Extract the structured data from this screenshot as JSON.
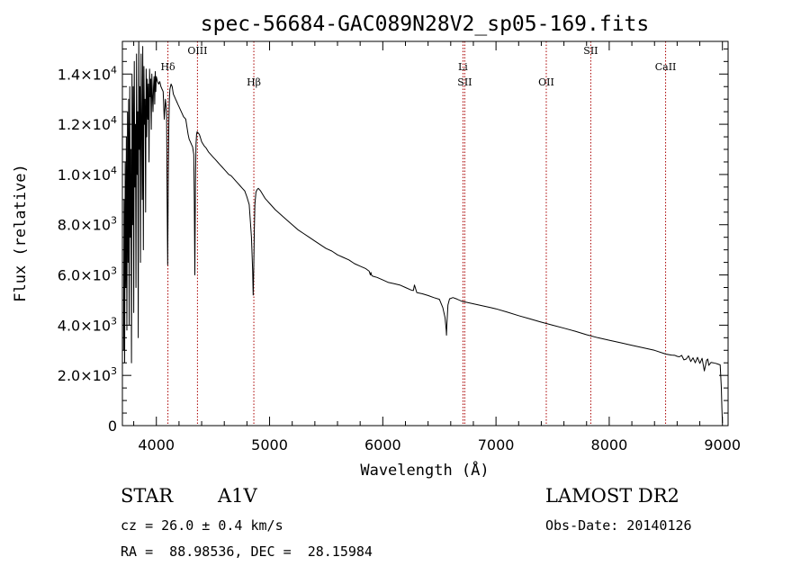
{
  "chart_data": {
    "type": "line",
    "title": "spec-56684-GAC089N28V2_sp05-169.fits",
    "xlabel": "Wavelength (Å)",
    "ylabel": "Flux (relative)",
    "xlim": [
      3700,
      9050
    ],
    "ylim": [
      0,
      15300
    ],
    "xticks": [
      4000,
      5000,
      6000,
      7000,
      8000,
      9000
    ],
    "xtick_labels": [
      "4000",
      "5000",
      "6000",
      "7000",
      "8000",
      "9000"
    ],
    "yticks": [
      {
        "value": 0,
        "mant": "0",
        "exp": ""
      },
      {
        "value": 2000,
        "mant": "2.0×10",
        "exp": "3"
      },
      {
        "value": 4000,
        "mant": "4.0×10",
        "exp": "3"
      },
      {
        "value": 6000,
        "mant": "6.0×10",
        "exp": "3"
      },
      {
        "value": 8000,
        "mant": "8.0×10",
        "exp": "3"
      },
      {
        "value": 10000,
        "mant": "1.0×10",
        "exp": "4"
      },
      {
        "value": 12000,
        "mant": "1.2×10",
        "exp": "4"
      },
      {
        "value": 14000,
        "mant": "1.4×10",
        "exp": "4"
      }
    ],
    "line_color": "#000000",
    "marker_color": "#aa0000",
    "grid": false,
    "series": [
      {
        "x": [
          3710,
          3715,
          3720,
          3725,
          3730,
          3735,
          3740,
          3745,
          3750,
          3755,
          3760,
          3765,
          3770,
          3775,
          3780,
          3785,
          3790,
          3795,
          3800,
          3805,
          3810,
          3815,
          3820,
          3825,
          3830,
          3835,
          3840,
          3845,
          3850,
          3855,
          3860,
          3865,
          3870,
          3875,
          3880,
          3885,
          3890,
          3895,
          3900,
          3905,
          3910,
          3915,
          3920,
          3925,
          3930,
          3935,
          3940,
          3945,
          3950,
          3955,
          3960,
          3965,
          3970,
          3975,
          3980,
          3985,
          3990,
          3995,
          4000,
          4010,
          4020,
          4030,
          4040,
          4050,
          4060,
          4070,
          4080,
          4090,
          4095,
          4100,
          4105,
          4110,
          4115,
          4120,
          4130,
          4140,
          4150,
          4160,
          4170,
          4180,
          4190,
          4200,
          4210,
          4220,
          4230,
          4240,
          4250,
          4260,
          4270,
          4280,
          4290,
          4300,
          4310,
          4320,
          4330,
          4335,
          4340,
          4345,
          4350,
          4355,
          4360,
          4370,
          4380,
          4390,
          4400,
          4420,
          4440,
          4460,
          4480,
          4500,
          4520,
          4540,
          4560,
          4580,
          4600,
          4620,
          4640,
          4660,
          4680,
          4700,
          4720,
          4740,
          4760,
          4780,
          4800,
          4820,
          4840,
          4850,
          4855,
          4860,
          4865,
          4870,
          4880,
          4890,
          4900,
          4920,
          4940,
          4960,
          4980,
          5000,
          5050,
          5100,
          5150,
          5200,
          5250,
          5300,
          5350,
          5400,
          5450,
          5500,
          5550,
          5600,
          5650,
          5700,
          5750,
          5800,
          5850,
          5880,
          5890,
          5895,
          5900,
          5910,
          5950,
          6000,
          6050,
          6100,
          6150,
          6200,
          6250,
          6270,
          6280,
          6290,
          6300,
          6350,
          6400,
          6450,
          6500,
          6530,
          6550,
          6560,
          6563,
          6566,
          6575,
          6590,
          6620,
          6650,
          6700,
          6750,
          6800,
          6850,
          6900,
          6950,
          7000,
          7100,
          7200,
          7300,
          7400,
          7500,
          7600,
          7700,
          7800,
          7900,
          8000,
          8100,
          8200,
          8300,
          8400,
          8500,
          8550,
          8580,
          8600,
          8620,
          8640,
          8660,
          8680,
          8700,
          8720,
          8740,
          8760,
          8780,
          8800,
          8820,
          8840,
          8860,
          8870,
          8880,
          8900,
          8920,
          8940,
          8960,
          8980,
          8990,
          8995,
          9000
        ],
        "y": [
          3000,
          9000,
          2500,
          10500,
          5500,
          11500,
          3800,
          12500,
          6500,
          13000,
          4000,
          13500,
          7500,
          11000,
          2500,
          14000,
          8000,
          13500,
          4500,
          14500,
          9500,
          12000,
          5500,
          14800,
          10000,
          12500,
          3500,
          15300,
          11000,
          13500,
          6500,
          14800,
          12000,
          9000,
          15100,
          7000,
          14300,
          12000,
          13000,
          8500,
          14200,
          11500,
          13800,
          12200,
          13600,
          10500,
          14200,
          13100,
          13800,
          11800,
          14000,
          13200,
          12500,
          13500,
          13900,
          12800,
          14100,
          13300,
          13900,
          13700,
          13600,
          13700,
          13500,
          13400,
          13300,
          12200,
          13000,
          12500,
          9000,
          6400,
          9500,
          12000,
          13000,
          13400,
          13600,
          13500,
          13200,
          13100,
          13000,
          12900,
          12800,
          12700,
          12600,
          12500,
          12400,
          12300,
          12250,
          12200,
          11900,
          11600,
          11400,
          11300,
          11200,
          11100,
          10800,
          9000,
          6000,
          9500,
          11200,
          11600,
          11700,
          11650,
          11600,
          11450,
          11300,
          11150,
          11050,
          10900,
          10800,
          10700,
          10600,
          10500,
          10400,
          10300,
          10200,
          10100,
          10000,
          9950,
          9850,
          9750,
          9650,
          9550,
          9450,
          9350,
          9100,
          8800,
          7500,
          6200,
          5200,
          6200,
          7800,
          8800,
          9300,
          9400,
          9450,
          9350,
          9200,
          9050,
          8950,
          8850,
          8600,
          8400,
          8200,
          8000,
          7800,
          7650,
          7500,
          7350,
          7200,
          7050,
          6950,
          6800,
          6700,
          6600,
          6450,
          6350,
          6250,
          6150,
          6000,
          6100,
          6000,
          5950,
          5900,
          5800,
          5700,
          5650,
          5600,
          5500,
          5400,
          5380,
          5600,
          5450,
          5300,
          5250,
          5180,
          5100,
          5030,
          4700,
          4300,
          3800,
          3600,
          4000,
          4800,
          5050,
          5100,
          5050,
          4950,
          4900,
          4850,
          4800,
          4750,
          4700,
          4650,
          4520,
          4380,
          4250,
          4120,
          4000,
          3880,
          3760,
          3620,
          3500,
          3400,
          3300,
          3200,
          3100,
          3000,
          2850,
          2810,
          2800,
          2760,
          2740,
          2800,
          2620,
          2650,
          2780,
          2550,
          2700,
          2500,
          2720,
          2480,
          2680,
          2180,
          2600,
          2650,
          2400,
          2520,
          2500,
          2480,
          2450,
          2420,
          1500,
          700,
          100
        ]
      }
    ],
    "line_markers": [
      {
        "x": 4102,
        "label": "Hδ",
        "row": 1
      },
      {
        "x": 4363,
        "label": "OIII",
        "row": 0
      },
      {
        "x": 4861,
        "label": "Hβ",
        "row": 2
      },
      {
        "x": 6708,
        "label": "Li",
        "row": 1
      },
      {
        "x": 6724,
        "label": "SII",
        "row": 2
      },
      {
        "x": 7444,
        "label": "OII",
        "row": 2
      },
      {
        "x": 7837,
        "label": "SII",
        "row": 0
      },
      {
        "x": 8498,
        "label": "CaII",
        "row": 1
      }
    ]
  },
  "info": {
    "object_type": "STAR",
    "subclass": "A1V",
    "cz_line": "cz = 26.0 ± 0.4 km/s",
    "coords_line": "RA =  88.98536, DEC =  28.15984",
    "survey": "LAMOST DR2",
    "obs_date_line": "Obs-Date: 20140126"
  }
}
